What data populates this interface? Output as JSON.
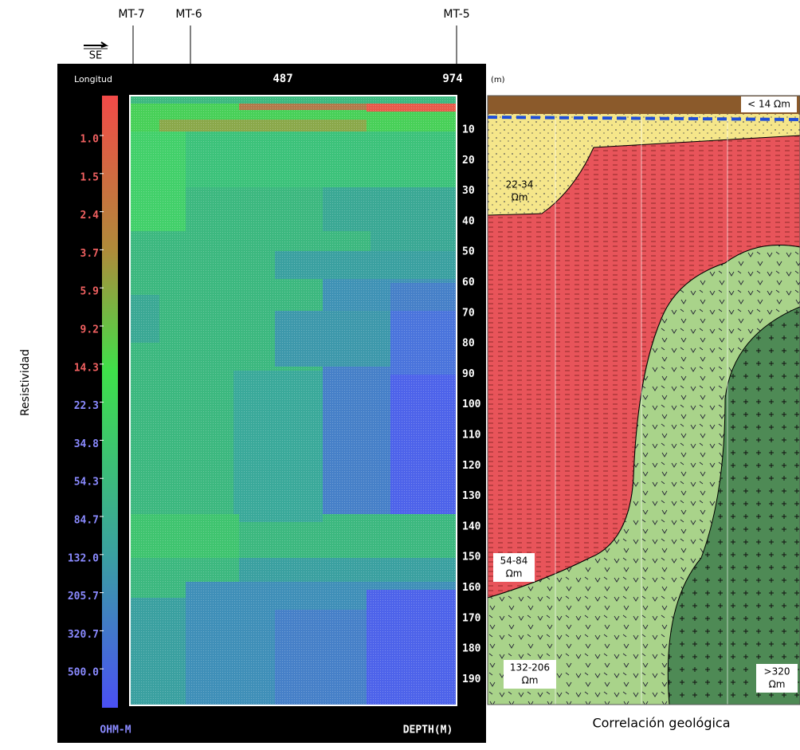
{
  "stations": [
    "MT-7",
    "MT-6",
    "MT-5"
  ],
  "direction": "SE",
  "axis_title": "Resistividad",
  "section": {
    "length_label": "Longitud",
    "distance_ticks": [
      "487",
      "974"
    ],
    "distance_unit": "(m)",
    "scale_values": [
      "1.0",
      "1.5",
      "2.4",
      "3.7",
      "5.9",
      "9.2",
      "14.3",
      "22.3",
      "34.8",
      "54.3",
      "84.7",
      "132.0",
      "205.7",
      "320.7",
      "500.0"
    ],
    "scale_unit": "OHM-M",
    "depth_values": [
      "10",
      "20",
      "30",
      "40",
      "50",
      "60",
      "70",
      "80",
      "90",
      "100",
      "110",
      "120",
      "130",
      "140",
      "150",
      "160",
      "170",
      "180",
      "190"
    ],
    "depth_label": "DEPTH(M)"
  },
  "geology": {
    "units": [
      {
        "lines": [
          "< 14 Ωm"
        ]
      },
      {
        "lines": [
          "22-34",
          "Ωm"
        ]
      },
      {
        "lines": [
          "54-84",
          "Ωm"
        ]
      },
      {
        "lines": [
          "132-206",
          "Ωm"
        ]
      },
      {
        "lines": [
          ">320",
          "Ωm"
        ]
      }
    ],
    "caption": "Correlación geológica"
  }
}
